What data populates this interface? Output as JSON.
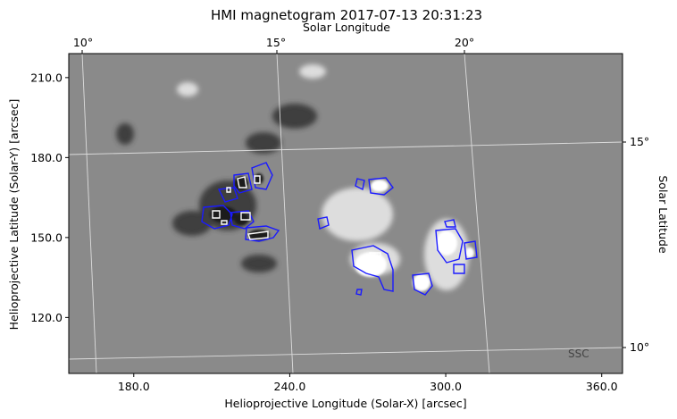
{
  "chart_data": {
    "type": "heatmap",
    "title": "HMI magnetogram 2017-07-13 20:31:23",
    "xlabel": "Helioprojective Longitude (Solar-X) [arcsec]",
    "ylabel": "Helioprojective Latitude (Solar-Y) [arcsec]",
    "top_axis_label": "Solar Longitude",
    "right_axis_label": "Solar Latitude",
    "watermark": "SSC",
    "xlim": [
      155,
      368
    ],
    "ylim": [
      99,
      219
    ],
    "x_ticks": [
      180,
      240,
      300,
      360
    ],
    "x_tick_labels": [
      "180.0",
      "240.0",
      "300.0",
      "360.0"
    ],
    "y_ticks": [
      120,
      150,
      180,
      210
    ],
    "y_tick_labels": [
      "120.0",
      "150.0",
      "180.0",
      "210.0"
    ],
    "longitude_ticks": [
      "10°",
      "15°",
      "20°"
    ],
    "latitude_ticks": [
      "15°",
      "10°"
    ],
    "grid": true,
    "colormap": "grayscale",
    "contour_levels": [
      {
        "name": "contour-level-low",
        "color": "#1a1aff"
      },
      {
        "name": "contour-level-high",
        "color": "#ffffff"
      }
    ],
    "background_color": "#8a8a8a"
  }
}
